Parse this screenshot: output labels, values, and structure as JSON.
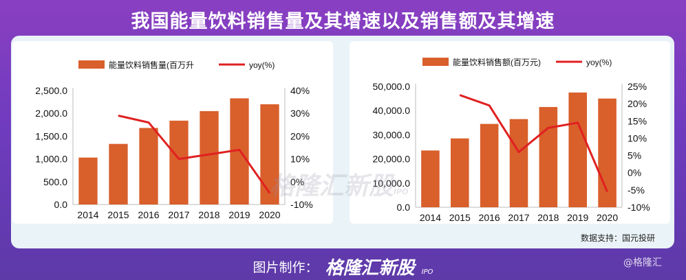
{
  "header": {
    "title": "我国能量饮料销售量及其增速以及销售额及其增速"
  },
  "colors": {
    "bar": "#d95f2b",
    "line": "#e02020",
    "background": "#7a3dbf",
    "panel": "#eaf3f7"
  },
  "chart_data": [
    {
      "type": "bar",
      "categories": [
        "2014",
        "2015",
        "2016",
        "2017",
        "2018",
        "2019",
        "2020"
      ],
      "series": [
        {
          "name": "能量饮料销售量(百万升",
          "type": "bar",
          "axis": "left",
          "values": [
            1030,
            1330,
            1680,
            1840,
            2050,
            2330,
            2200
          ]
        },
        {
          "name": "yoy(%)",
          "type": "line",
          "axis": "right",
          "values": [
            null,
            29,
            26,
            10,
            12,
            14,
            -5
          ]
        }
      ],
      "y_left": {
        "min": 0,
        "max": 2500,
        "ticks": [
          "2,500.0",
          "2,000.0",
          "1,500.0",
          "1,000.0",
          "500.0",
          "0.0"
        ]
      },
      "y_right": {
        "min": -10,
        "max": 40,
        "ticks": [
          "40%",
          "30%",
          "20%",
          "10%",
          "0%",
          "-10%"
        ]
      },
      "legend_position": "top"
    },
    {
      "type": "bar",
      "categories": [
        "2014",
        "2015",
        "2016",
        "2017",
        "2018",
        "2019",
        "2020"
      ],
      "series": [
        {
          "name": "能量饮料销售额(百万元)",
          "type": "bar",
          "axis": "left",
          "values": [
            23500,
            28500,
            34500,
            36500,
            41500,
            47500,
            45000
          ]
        },
        {
          "name": "yoy(%)",
          "type": "line",
          "axis": "right",
          "values": [
            null,
            22.5,
            19.5,
            6,
            13,
            14.5,
            -5.5
          ]
        }
      ],
      "y_left": {
        "min": 0,
        "max": 50000,
        "ticks": [
          "50,000.0",
          "40,000.0",
          "30,000.0",
          "20,000.0",
          "10,000.0",
          "0.0"
        ]
      },
      "y_right": {
        "min": -10,
        "max": 25,
        "ticks": [
          "25%",
          "20%",
          "15%",
          "10%",
          "5%",
          "0%",
          "-5%",
          "-10%"
        ]
      },
      "legend_position": "top"
    }
  ],
  "source_note": "数据支持：国元投研",
  "watermark": {
    "text": "格隆汇新股",
    "sub": "IPO"
  },
  "footer": {
    "credit": "图片制作：",
    "brand": "格隆汇新股",
    "ipo": "IPO"
  },
  "corner_mark": "@格隆汇"
}
